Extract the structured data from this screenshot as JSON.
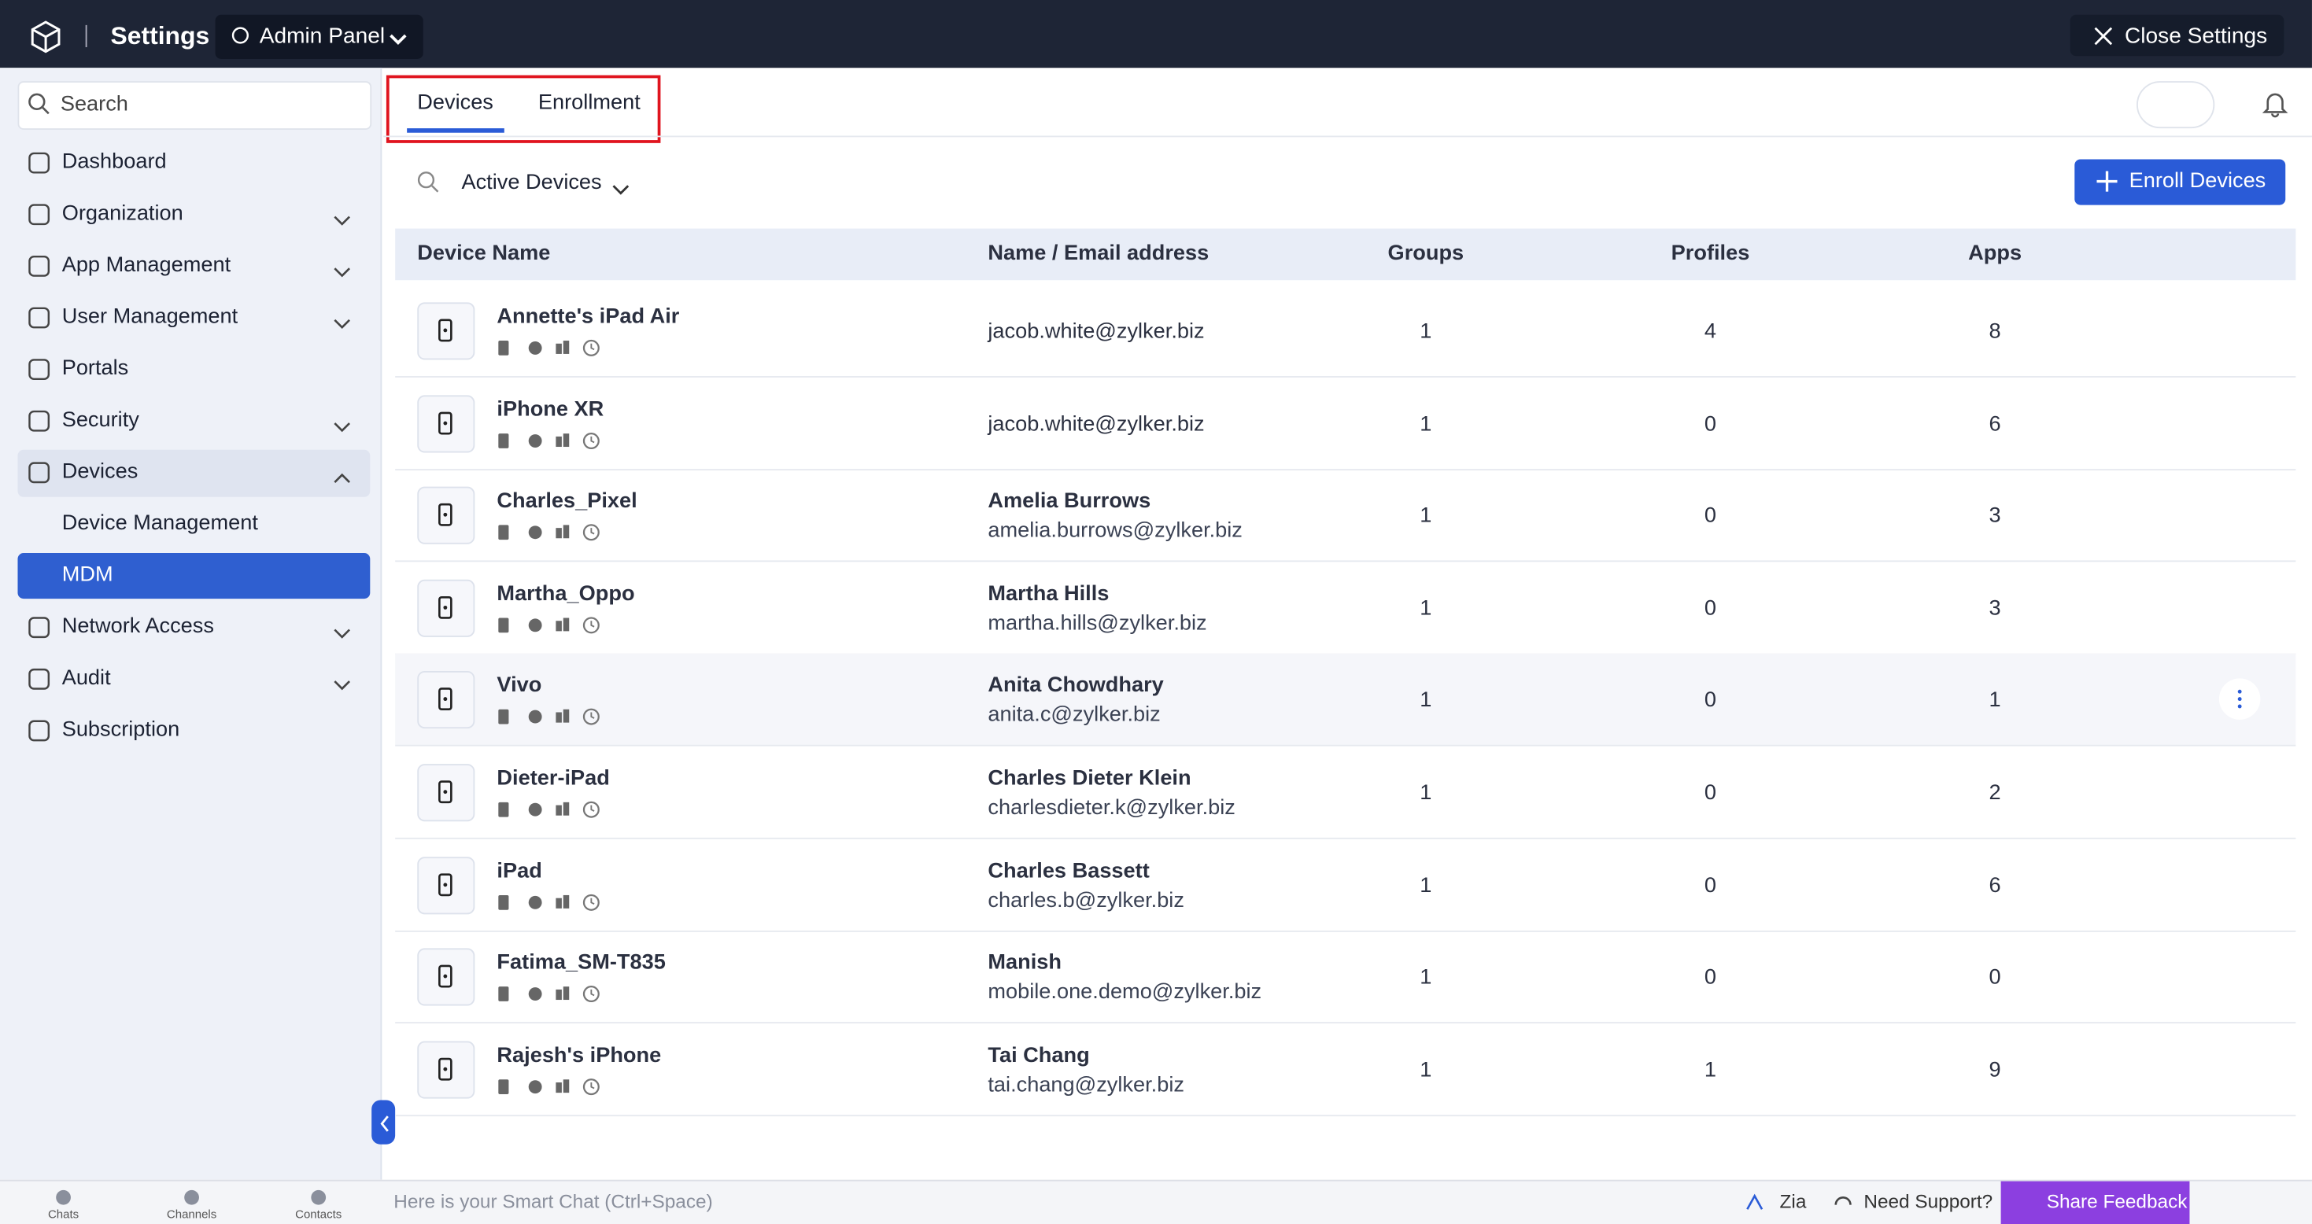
{
  "header": {
    "title": "Settings",
    "panel": "Admin Panel",
    "close": "Close Settings"
  },
  "sidebar": {
    "search": "Search",
    "items": [
      {
        "label": "Dashboard"
      },
      {
        "label": "Organization",
        "expandable": true
      },
      {
        "label": "App Management",
        "expandable": true
      },
      {
        "label": "User Management",
        "expandable": true
      },
      {
        "label": "Portals"
      },
      {
        "label": "Security",
        "expandable": true
      },
      {
        "label": "Devices",
        "expandable": true,
        "open": true,
        "children": [
          {
            "label": "Device Management"
          },
          {
            "label": "MDM",
            "selected": true
          }
        ]
      },
      {
        "label": "Network Access",
        "expandable": true
      },
      {
        "label": "Audit",
        "expandable": true
      },
      {
        "label": "Subscription"
      }
    ]
  },
  "tabs": {
    "items": [
      "Devices",
      "Enrollment"
    ],
    "active": 0
  },
  "toolbar": {
    "filter": "Active Devices",
    "enroll": "Enroll Devices"
  },
  "table": {
    "columns": [
      "Device Name",
      "Name / Email address",
      "Groups",
      "Profiles",
      "Apps"
    ],
    "rows": [
      {
        "device": "Annette's iPad Air",
        "email": "jacob.white@zylker.biz",
        "groups": 1,
        "profiles": 4,
        "apps": 8
      },
      {
        "device": "iPhone XR",
        "email": "jacob.white@zylker.biz",
        "groups": 1,
        "profiles": 0,
        "apps": 6
      },
      {
        "device": "Charles_Pixel",
        "owner": "Amelia Burrows",
        "email": "amelia.burrows@zylker.biz",
        "groups": 1,
        "profiles": 0,
        "apps": 3
      },
      {
        "device": "Martha_Oppo",
        "owner": "Martha Hills",
        "email": "martha.hills@zylker.biz",
        "groups": 1,
        "profiles": 0,
        "apps": 3
      },
      {
        "device": "Vivo",
        "owner": "Anita Chowdhary",
        "email": "anita.c@zylker.biz",
        "groups": 1,
        "profiles": 0,
        "apps": 1,
        "hover": true
      },
      {
        "device": "Dieter-iPad",
        "owner": "Charles Dieter Klein",
        "email": "charlesdieter.k@zylker.biz",
        "groups": 1,
        "profiles": 0,
        "apps": 2
      },
      {
        "device": "iPad",
        "owner": "Charles Bassett",
        "email": "charles.b@zylker.biz",
        "groups": 1,
        "profiles": 0,
        "apps": 6
      },
      {
        "device": "Fatima_SM-T835",
        "owner": "Manish",
        "email": "mobile.one.demo@zylker.biz",
        "groups": 1,
        "profiles": 0,
        "apps": 0
      },
      {
        "device": "Rajesh's iPhone",
        "owner": "Tai Chang",
        "email": "tai.chang@zylker.biz",
        "groups": 1,
        "profiles": 1,
        "apps": 9
      }
    ]
  },
  "footer": {
    "apps": [
      "Chats",
      "Channels",
      "Contacts"
    ],
    "chat": "Here is your Smart Chat (Ctrl+Space)",
    "zia": "Zia",
    "support": "Need Support?",
    "feedback": "Share Feedback"
  }
}
